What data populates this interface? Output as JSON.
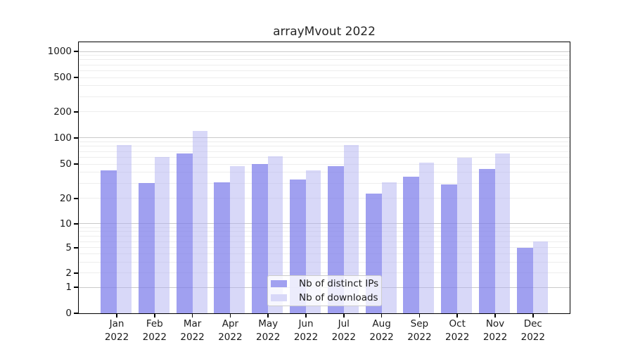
{
  "title": "arrayMvout 2022",
  "colors": {
    "distinct_ips": "#a1a1f0",
    "downloads": "#d8d8f8",
    "grid_major": "#c9c9c9",
    "grid_minor": "#ededed",
    "axis": "#000000"
  },
  "legend": {
    "items": [
      {
        "label": "Nb of distinct IPs",
        "color": "#a1a1f0"
      },
      {
        "label": "Nb of downloads",
        "color": "#d8d8f8"
      }
    ]
  },
  "chart_data": {
    "type": "bar",
    "title": "arrayMvout 2022",
    "scale": "symlog",
    "grid": "on",
    "legend_position": "inside-bottom-center",
    "categories": [
      {
        "month": "Jan",
        "year": "2022"
      },
      {
        "month": "Feb",
        "year": "2022"
      },
      {
        "month": "Mar",
        "year": "2022"
      },
      {
        "month": "Apr",
        "year": "2022"
      },
      {
        "month": "May",
        "year": "2022"
      },
      {
        "month": "Jun",
        "year": "2022"
      },
      {
        "month": "Jul",
        "year": "2022"
      },
      {
        "month": "Aug",
        "year": "2022"
      },
      {
        "month": "Sep",
        "year": "2022"
      },
      {
        "month": "Oct",
        "year": "2022"
      },
      {
        "month": "Nov",
        "year": "2022"
      },
      {
        "month": "Dec",
        "year": "2022"
      }
    ],
    "series": [
      {
        "name": "Nb of distinct IPs",
        "color": "#a1a1f0",
        "values": [
          42,
          30,
          66,
          31,
          50,
          33,
          47,
          23,
          36,
          29,
          44,
          5
        ]
      },
      {
        "name": "Nb of downloads",
        "color": "#d8d8f8",
        "values": [
          83,
          60,
          120,
          47,
          61,
          42,
          83,
          31,
          52,
          59,
          66,
          6
        ]
      }
    ],
    "yticks": [
      0,
      1,
      2,
      5,
      10,
      20,
      50,
      100,
      200,
      500,
      1000
    ],
    "ylim": [
      0,
      1200
    ]
  }
}
